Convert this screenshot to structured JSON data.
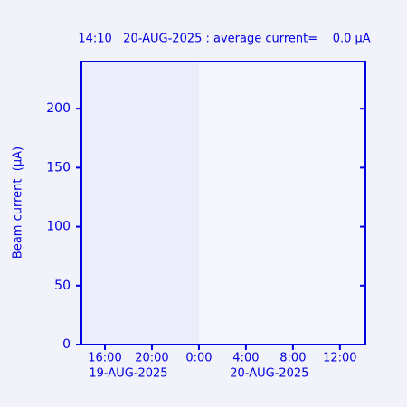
{
  "chart_data": {
    "type": "line",
    "title": "14:10   20-AUG-2025 : average current=    0.0 μA",
    "y_label": "Beam current  (μA)",
    "xlim": [
      14,
      38.1667
    ],
    "xticks": [
      {
        "value": 16,
        "label": "16:00"
      },
      {
        "value": 20,
        "label": "20:00"
      },
      {
        "value": 24,
        "label": "0:00"
      },
      {
        "value": 28,
        "label": "4:00"
      },
      {
        "value": 32,
        "label": "8:00"
      },
      {
        "value": 36,
        "label": "12:00"
      }
    ],
    "date_labels": [
      {
        "value": 18,
        "label": "19-AUG-2025"
      },
      {
        "value": 30,
        "label": "20-AUG-2025"
      }
    ],
    "shaded_xrange": [
      14,
      24
    ],
    "ylim": [
      0,
      240
    ],
    "yticks": [
      0,
      50,
      100,
      150,
      200
    ],
    "color": "#0000e0"
  }
}
